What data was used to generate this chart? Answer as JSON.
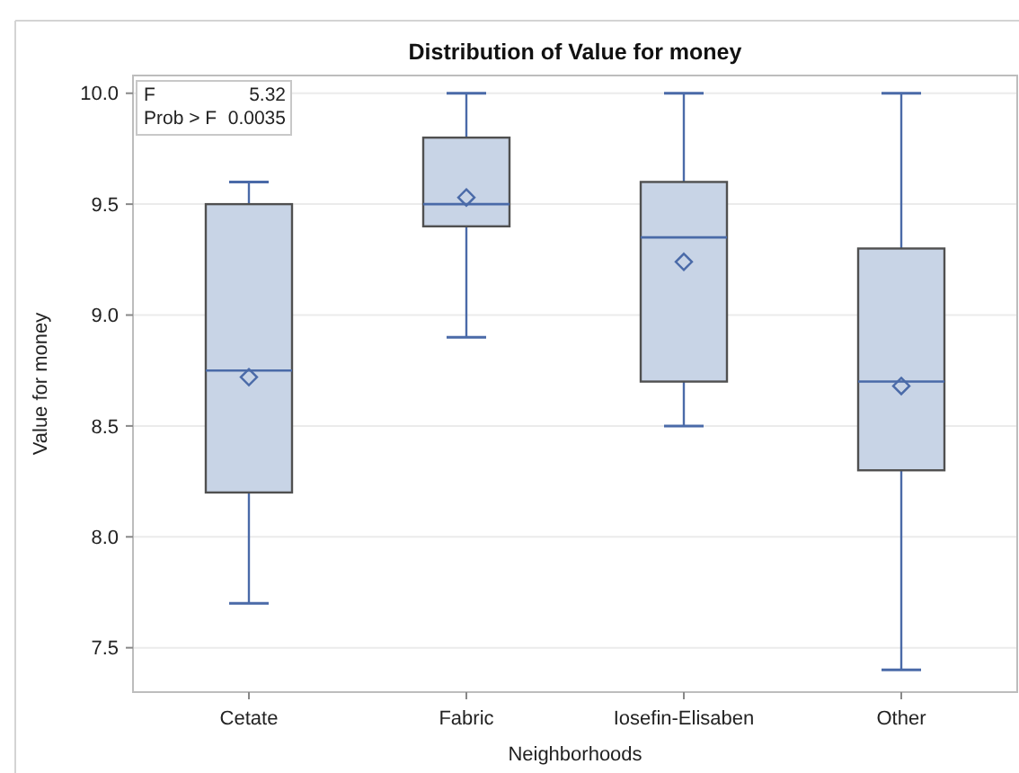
{
  "chart_data": {
    "type": "box",
    "title": "Distribution of Value for money",
    "xlabel": "Neighborhoods",
    "ylabel": "Value for money",
    "categories": [
      "Cetate",
      "Fabric",
      "Iosefin-Elisaben",
      "Other"
    ],
    "boxes": [
      {
        "low": 7.7,
        "q1": 8.2,
        "median": 8.75,
        "q3": 9.5,
        "high": 9.6,
        "mean": 8.72
      },
      {
        "low": 8.9,
        "q1": 9.4,
        "median": 9.5,
        "q3": 9.8,
        "high": 10.0,
        "mean": 9.53
      },
      {
        "low": 8.5,
        "q1": 8.7,
        "median": 9.35,
        "q3": 9.6,
        "high": 10.0,
        "mean": 9.24
      },
      {
        "low": 7.4,
        "q1": 8.3,
        "median": 8.7,
        "q3": 9.3,
        "high": 10.0,
        "mean": 8.68
      }
    ],
    "color": "#c8d4e6",
    "marker": "diamond",
    "ylim": [
      7.3,
      10.08
    ],
    "yticks": [
      7.5,
      {
        "value": 8,
        "label": "8.0"
      },
      8.5,
      {
        "value": 9,
        "label": "9.0"
      },
      9.5,
      {
        "value": 10,
        "label": "10.0"
      }
    ],
    "grid": "y",
    "annotations": [
      "F 5.32",
      "Prob > F 0.0035"
    ]
  }
}
